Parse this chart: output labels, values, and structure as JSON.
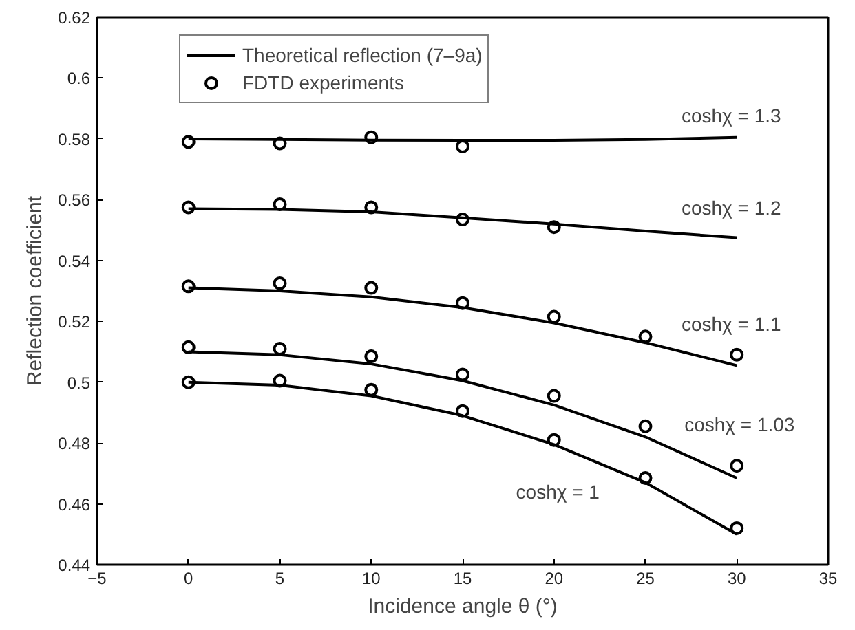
{
  "chart_data": {
    "type": "line",
    "xlabel": "Incidence angle θ (°)",
    "ylabel": "Reflection coefficient",
    "xlim": [
      -5,
      35
    ],
    "ylim": [
      0.44,
      0.62
    ],
    "xticks": [
      {
        "value": -5,
        "label": "−5"
      },
      0,
      5,
      10,
      15,
      20,
      25,
      30,
      35
    ],
    "yticks": [
      0.44,
      0.46,
      0.48,
      0.5,
      0.52,
      0.54,
      0.56,
      0.58,
      0.6,
      0.62
    ],
    "grid": false,
    "legend": "top left",
    "series": [
      {
        "name": "Theoretical reflection (7–9a)",
        "type": "line",
        "color": "#000000",
        "marker": "none",
        "line_style": "solid",
        "x": [
          0,
          5,
          10,
          15,
          20,
          25,
          30
        ],
        "values": [
          0.58,
          0.5798,
          0.5796,
          0.5795,
          0.5795,
          0.5798,
          0.5805
        ]
      },
      {
        "type": "line",
        "color": "#000000",
        "marker": "none",
        "line_style": "solid",
        "x": [
          0,
          5,
          10,
          15,
          20,
          25,
          30
        ],
        "values": [
          0.557,
          0.5568,
          0.556,
          0.554,
          0.552,
          0.5497,
          0.5475
        ]
      },
      {
        "type": "line",
        "color": "#000000",
        "marker": "none",
        "line_style": "solid",
        "x": [
          0,
          5,
          10,
          15,
          20,
          25,
          30
        ],
        "values": [
          0.531,
          0.53,
          0.528,
          0.5245,
          0.5195,
          0.513,
          0.5055
        ]
      },
      {
        "type": "line",
        "color": "#000000",
        "marker": "none",
        "line_style": "solid",
        "x": [
          0,
          5,
          10,
          15,
          20,
          25,
          30
        ],
        "values": [
          0.51,
          0.509,
          0.506,
          0.5005,
          0.4925,
          0.482,
          0.4685
        ]
      },
      {
        "type": "line",
        "color": "#000000",
        "marker": "none",
        "line_style": "solid",
        "x": [
          0,
          5,
          10,
          15,
          20,
          25,
          30
        ],
        "values": [
          0.5,
          0.499,
          0.4955,
          0.489,
          0.4795,
          0.467,
          0.45
        ]
      },
      {
        "name": "FDTD experiments",
        "type": "scatter",
        "color": "#000000",
        "marker": "circle",
        "x": [
          0,
          5,
          10,
          15
        ],
        "values": [
          0.579,
          0.5785,
          0.5805,
          0.5775
        ]
      },
      {
        "type": "scatter",
        "color": "#000000",
        "marker": "circle",
        "x": [
          0,
          5,
          10,
          15,
          20
        ],
        "values": [
          0.5575,
          0.5585,
          0.5575,
          0.5535,
          0.551
        ]
      },
      {
        "type": "scatter",
        "color": "#000000",
        "marker": "circle",
        "x": [
          0,
          5,
          10,
          15,
          20,
          25,
          30
        ],
        "values": [
          0.5315,
          0.5325,
          0.531,
          0.526,
          0.5215,
          0.515,
          0.509
        ]
      },
      {
        "type": "scatter",
        "color": "#000000",
        "marker": "circle",
        "x": [
          0,
          5,
          10,
          15,
          20,
          25,
          30
        ],
        "values": [
          0.5115,
          0.511,
          0.5085,
          0.5025,
          0.4955,
          0.4855,
          0.4725
        ]
      },
      {
        "type": "scatter",
        "color": "#000000",
        "marker": "circle",
        "x": [
          0,
          5,
          10,
          15,
          20,
          25,
          30
        ],
        "values": [
          0.5,
          0.5005,
          0.4975,
          0.4905,
          0.481,
          0.4685,
          0.452
        ]
      }
    ],
    "annotations": [
      "coshχ = 1.3",
      "coshχ = 1.2",
      "coshχ = 1.1",
      "coshχ = 1.03",
      "coshχ = 1"
    ]
  }
}
